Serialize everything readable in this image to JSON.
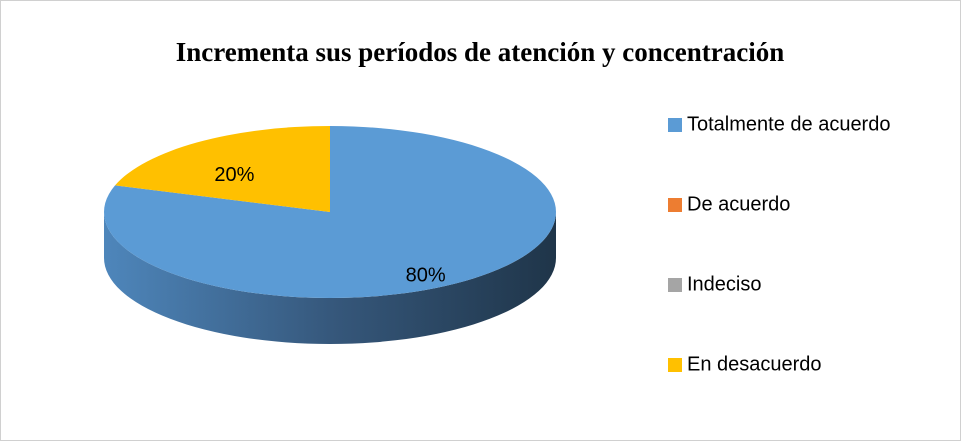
{
  "chart_data": {
    "type": "pie",
    "title": "Incrementa sus períodos de atención y concentración",
    "categories": [
      "Totalmente de acuerdo",
      "De acuerdo",
      "Indeciso",
      "En desacuerdo"
    ],
    "series": [
      {
        "name": "Incrementa sus períodos de atención y concentración",
        "colors": [
          "#5b9bd5",
          "#ed7d31",
          "#a5a5a5",
          "#ffc000"
        ],
        "values": [
          80,
          0,
          0,
          20
        ],
        "value_labels": [
          "80%",
          null,
          null,
          "20%"
        ]
      }
    ],
    "legend": "right"
  }
}
